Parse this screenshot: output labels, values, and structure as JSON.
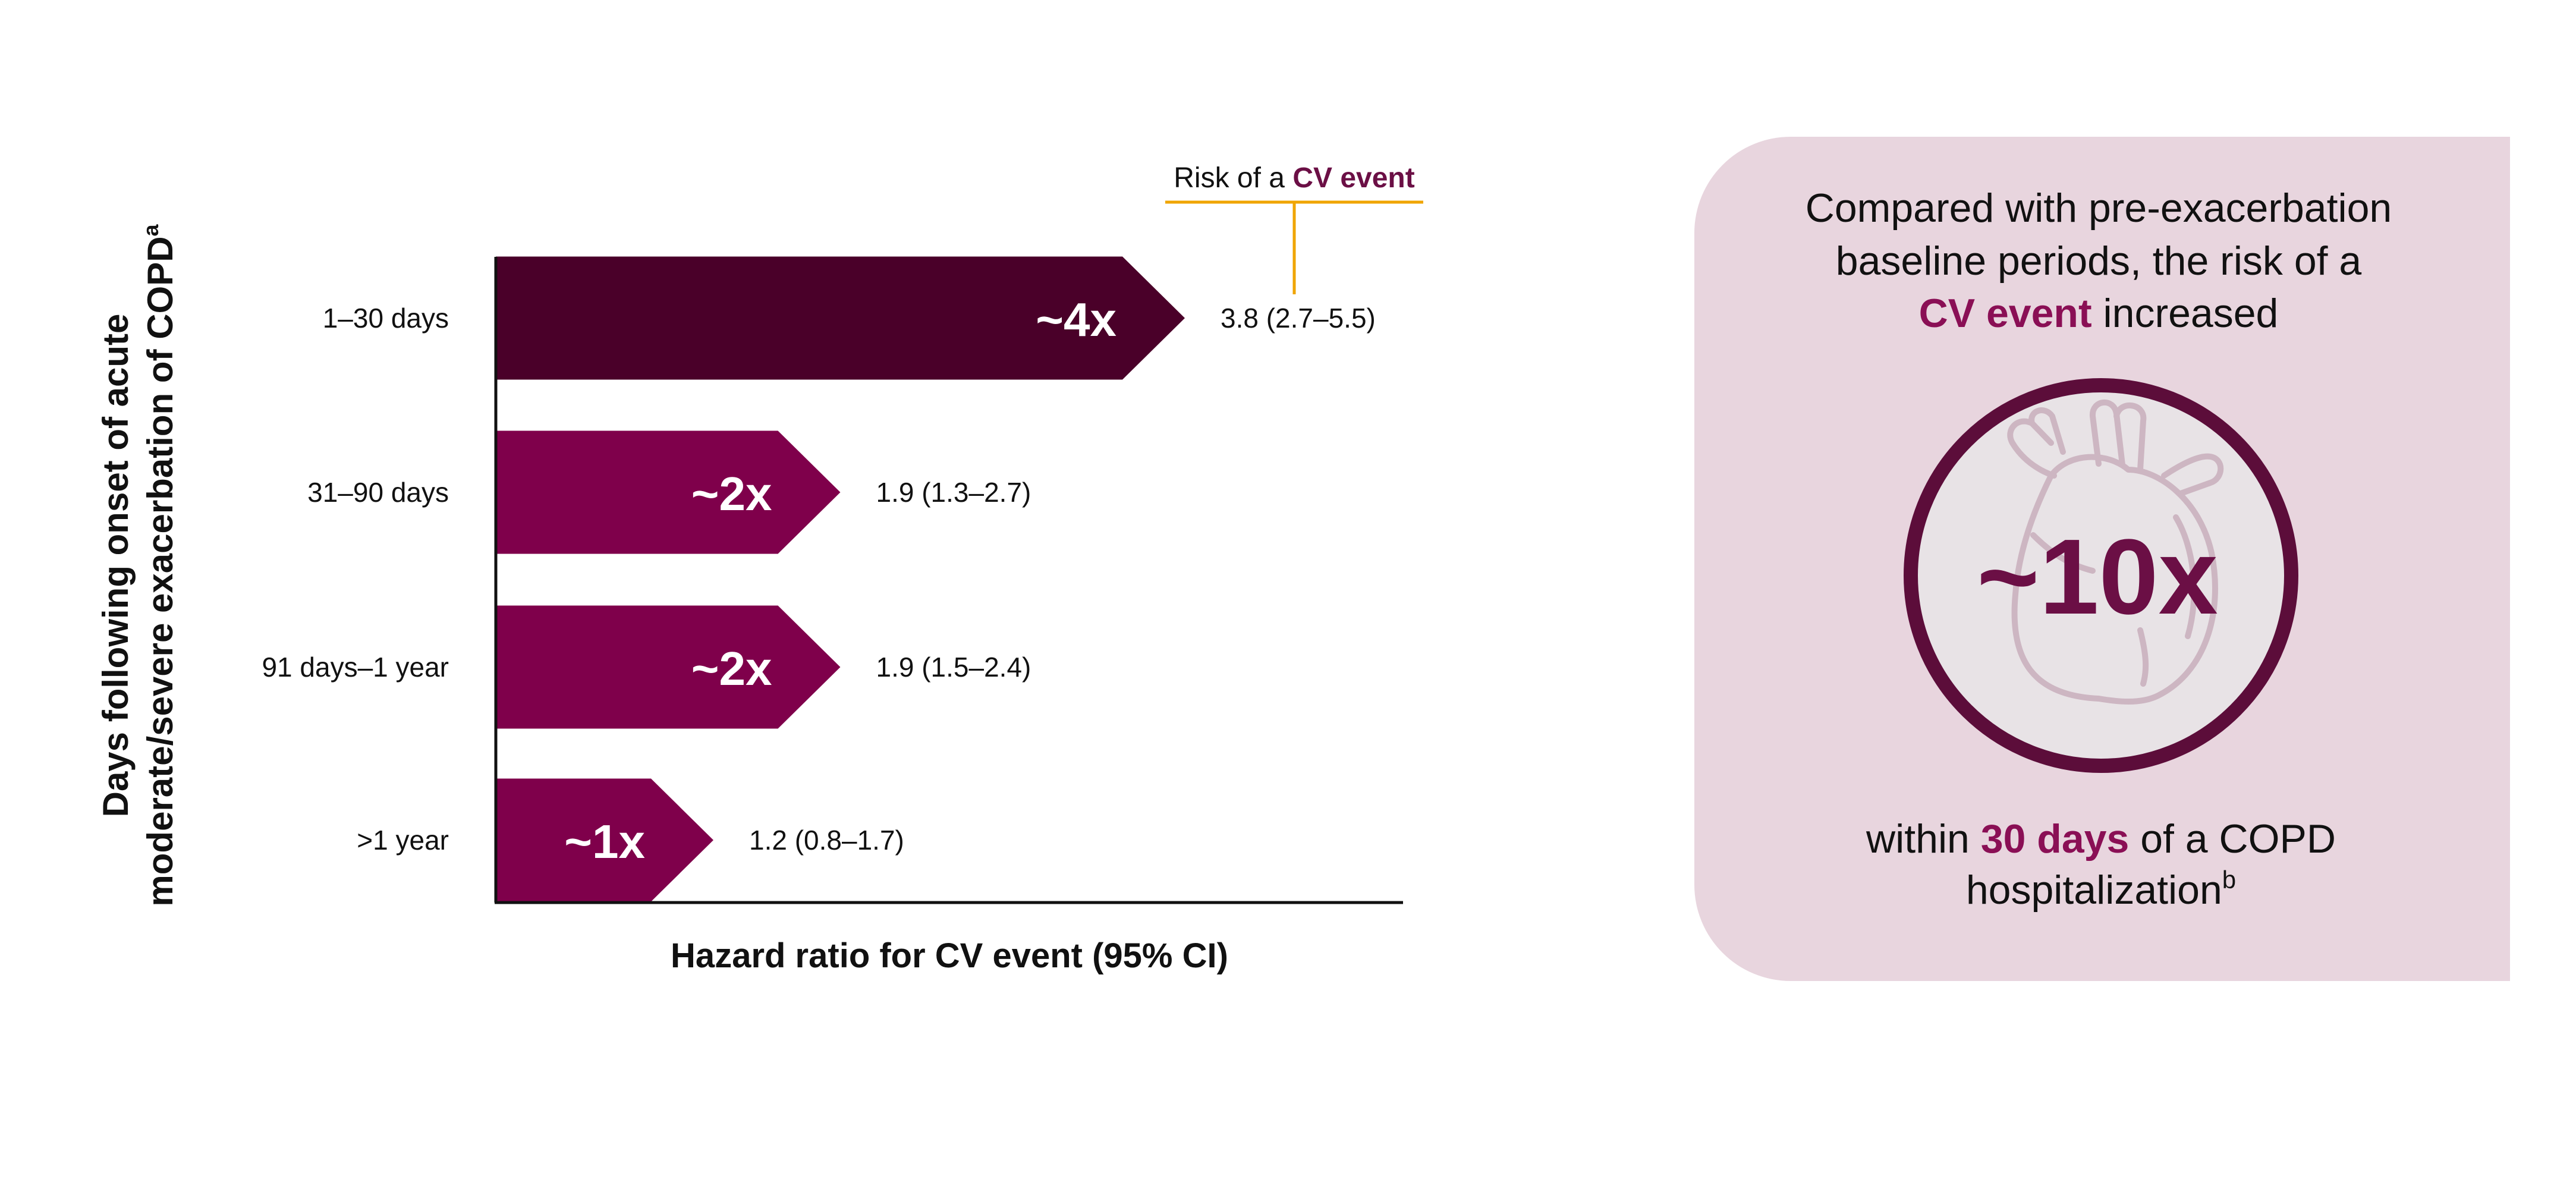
{
  "chart_data": {
    "type": "bar",
    "orientation": "horizontal",
    "title": "",
    "xlabel": "Hazard ratio for CV event (95% CI)",
    "ylabel": {
      "line1": "Days following onset of acute",
      "line2_main": "moderate/severe exacerbation of COPD",
      "line2_sup": "a"
    },
    "categories": [
      "1–30 days",
      "31–90 days",
      "91 days–1 year",
      ">1 year"
    ],
    "values": [
      3.8,
      1.9,
      1.9,
      1.2
    ],
    "ci_low": [
      2.7,
      1.3,
      1.5,
      0.8
    ],
    "ci_high": [
      5.5,
      2.7,
      2.4,
      1.7
    ],
    "bar_labels": [
      "~4x",
      "~2x",
      "~2x",
      "~1x"
    ],
    "value_labels": [
      "3.8 (2.7–5.5)",
      "1.9 (1.3–2.7)",
      "1.9 (1.5–2.4)",
      "1.2 (0.8–1.7)"
    ],
    "bar_colors": [
      "#4a0029",
      "#7f004b",
      "#7f004b",
      "#7f004b"
    ],
    "annotation": {
      "prefix": "Risk of a ",
      "highlight": "CV event",
      "highlight_color": "#6b0f45",
      "line_color": "#f0a500",
      "target_category": "1–30 days"
    },
    "grid": false,
    "legend": "none"
  },
  "callout": {
    "background": "#e8d5de",
    "text_line1": "Compared with pre-exacerbation",
    "text_line2": "baseline periods, the risk of a",
    "text_line3_highlight": "CV event",
    "text_line3_rest": " increased",
    "big_number": "~10x",
    "big_number_color": "#6b0f45",
    "ring_color": "#5c0d3a",
    "circle_fill": "#e8e3e6",
    "heart_icon": "heart-outline-icon",
    "bottom_prefix": "within ",
    "bottom_highlight": "30 days",
    "bottom_rest": " of a COPD",
    "bottom_line2": "hospitalization",
    "bottom_line2_sup": "b",
    "highlight_color": "#8a0f55",
    "text_color": "#111111"
  }
}
